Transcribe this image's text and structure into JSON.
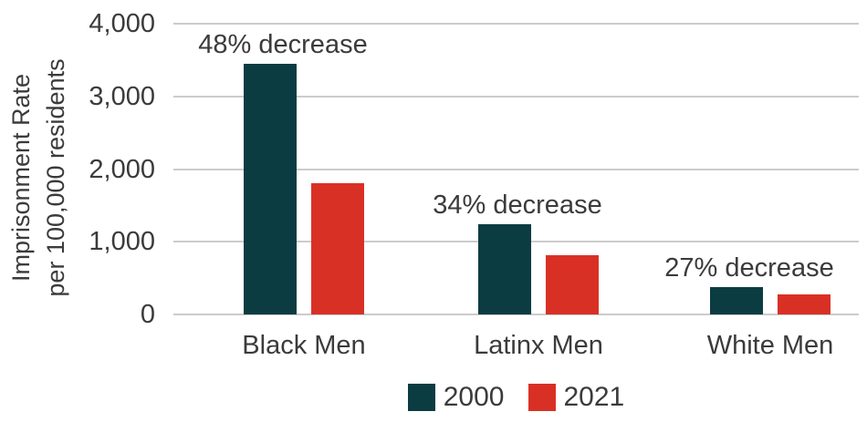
{
  "chart_data": {
    "type": "bar",
    "title": "",
    "ylabel_lines": [
      "Imprisonment Rate",
      "per 100,000 residents"
    ],
    "categories": [
      "Black Men",
      "Latinx Men",
      "White Men"
    ],
    "series": [
      {
        "name": "2000",
        "color": "#0b3c42",
        "values": [
          3450,
          1240,
          380
        ]
      },
      {
        "name": "2021",
        "color": "#d93026",
        "values": [
          1800,
          815,
          280
        ]
      }
    ],
    "annotations": [
      "48% decrease",
      "34% decrease",
      "27% decrease"
    ],
    "y_ticks": [
      "4,000",
      "3,000",
      "2,000",
      "1,000",
      "0"
    ],
    "y_tick_values": [
      4000,
      3000,
      2000,
      1000,
      0
    ],
    "ylim": [
      0,
      4000
    ],
    "grid": true,
    "legend_position": "bottom",
    "colors": {
      "series_2000": "#0b3c42",
      "series_2021": "#d93026",
      "gridline": "#cccccc",
      "text": "#3b3b3b",
      "background": "#ffffff"
    }
  }
}
